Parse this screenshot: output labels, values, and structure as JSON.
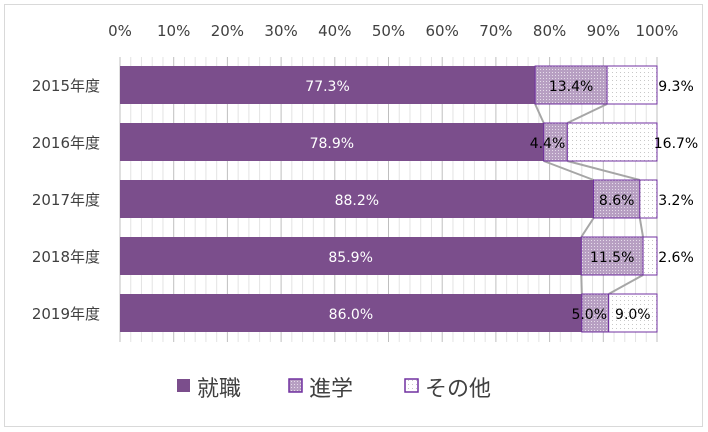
{
  "chart_data": {
    "type": "bar",
    "orientation": "horizontal",
    "stacked": "percent",
    "title": "",
    "categories": [
      "2015年度",
      "2016年度",
      "2017年度",
      "2018年度",
      "2019年度"
    ],
    "series": [
      {
        "name": "就職",
        "values": [
          77.3,
          78.9,
          88.2,
          85.9,
          86.0
        ],
        "labels": [
          "77.3%",
          "78.9%",
          "88.2%",
          "85.9%",
          "86.0%"
        ]
      },
      {
        "name": "進学",
        "values": [
          13.4,
          4.4,
          8.6,
          11.5,
          5.0
        ],
        "labels": [
          "13.4%",
          "4.4%",
          "8.6%",
          "11.5%",
          "5.0%"
        ]
      },
      {
        "name": "その他",
        "values": [
          9.3,
          16.7,
          3.2,
          2.6,
          9.0
        ],
        "labels": [
          "9.3%",
          "16.7%",
          "3.2%",
          "2.6%",
          "9.0%"
        ]
      }
    ],
    "xticks": [
      "0%",
      "10%",
      "20%",
      "30%",
      "40%",
      "50%",
      "60%",
      "70%",
      "80%",
      "90%",
      "100%"
    ],
    "xlim": [
      0,
      100
    ],
    "grid": true,
    "series_lines": true,
    "legend": "bottom",
    "colors": {
      "employment": "#7B4E8C",
      "study": "#C3AECB",
      "other": "#ffffff",
      "border": "#7030A0",
      "line": "#a6a6a6"
    }
  }
}
